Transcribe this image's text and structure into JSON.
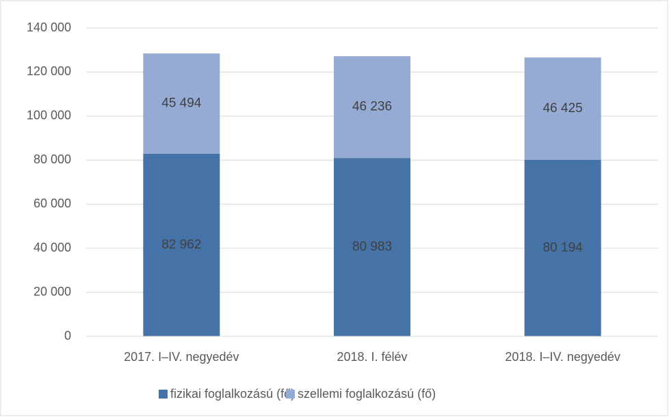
{
  "chart_data": {
    "type": "stacked_bar",
    "categories": [
      "2017. I–IV. negyedév",
      "2018. I. félév",
      "2018. I–IV. negyedév"
    ],
    "series": [
      {
        "name": "fizikai foglalkozású (fő)",
        "color": "#4573a8",
        "values": [
          82962,
          80983,
          80194
        ],
        "value_labels": [
          "82 962",
          "80 983",
          "80 194"
        ]
      },
      {
        "name": "szellemi foglalkozású (fő)",
        "color": "#95abd4",
        "values": [
          45494,
          46236,
          46425
        ],
        "value_labels": [
          "45 494",
          "46 236",
          "46 425"
        ]
      }
    ],
    "ylim": [
      0,
      140000
    ],
    "yticks": [
      0,
      {
        "value": 20000,
        "label": "20 000"
      },
      {
        "value": 40000,
        "label": "40 000"
      },
      {
        "value": 60000,
        "label": "60 000"
      },
      {
        "value": 80000,
        "label": "80 000"
      },
      {
        "value": 100000,
        "label": "100 000"
      },
      {
        "value": 120000,
        "label": "120 000"
      },
      {
        "value": 140000,
        "label": "140 000"
      }
    ],
    "grid": true,
    "legend": "bottom"
  }
}
